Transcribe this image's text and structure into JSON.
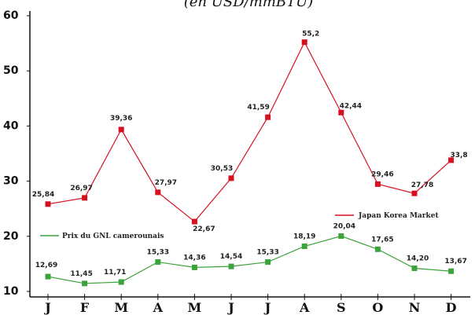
{
  "chart_data": {
    "type": "line",
    "subtitle": "(en USD/mmBTU)",
    "categories": [
      "J",
      "F",
      "M",
      "A",
      "M",
      "J",
      "J",
      "A",
      "S",
      "O",
      "N",
      "D"
    ],
    "ylim": [
      10,
      60
    ],
    "yticks": [
      "60",
      "50",
      "40",
      "30",
      "20",
      "10"
    ],
    "grid": false,
    "series": [
      {
        "name": "Japan Korea Market",
        "color": "#d7101f",
        "values": [
          25.84,
          26.97,
          39.36,
          27.97,
          22.67,
          30.53,
          41.59,
          55.2,
          42.44,
          29.46,
          27.78,
          33.8
        ],
        "labels": [
          "25,84",
          "26,97",
          "39,36",
          "27,97",
          "22,67",
          "30,53",
          "41,59",
          "55,2",
          "42,44",
          "29,46",
          "27,78",
          "33,8"
        ]
      },
      {
        "name": "Prix du GNL camerounais",
        "color": "#3aa33a",
        "values": [
          12.69,
          11.45,
          11.71,
          15.33,
          14.36,
          14.54,
          15.33,
          18.19,
          20.04,
          17.65,
          14.2,
          13.67
        ],
        "labels": [
          "12,69",
          "11,45",
          "11,71",
          "15,33",
          "14,36",
          "14,54",
          "15,33",
          "18,19",
          "20,04",
          "17,65",
          "14,20",
          "13,67"
        ]
      }
    ]
  }
}
